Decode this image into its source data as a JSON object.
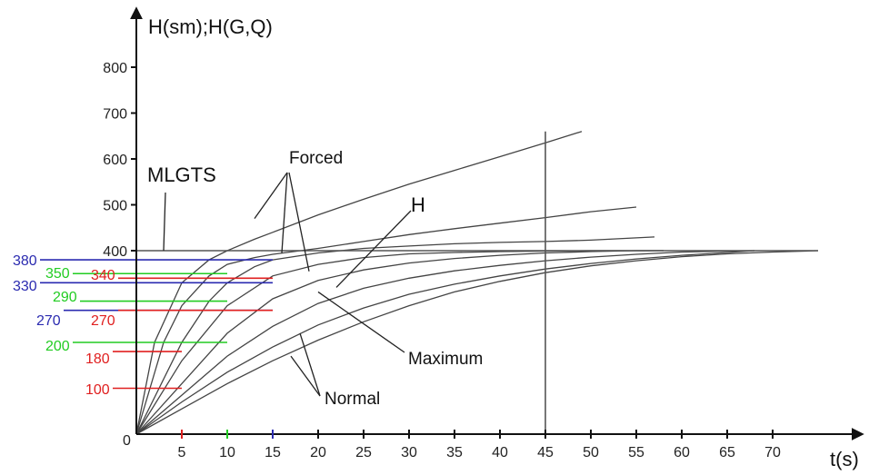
{
  "chart_data": {
    "type": "line",
    "title": "",
    "ylabel": "H(sm);H(G,Q)",
    "xlabel": "t(s)",
    "xlim": [
      0,
      78
    ],
    "ylim": [
      0,
      860
    ],
    "x_ticks": [
      5,
      10,
      15,
      20,
      25,
      30,
      35,
      40,
      45,
      50,
      55,
      60,
      65,
      70
    ],
    "y_ticks": [
      400,
      500,
      600,
      700,
      800
    ],
    "origin_label": "0",
    "grid": false,
    "series": [
      {
        "x": [
          0,
          2,
          5,
          8,
          10,
          13,
          15,
          20,
          25,
          30,
          35,
          40,
          45,
          49
        ],
        "values": [
          0,
          200,
          330,
          380,
          400,
          425,
          440,
          478,
          512,
          545,
          575,
          605,
          635,
          660
        ]
      },
      {
        "x": [
          0,
          3,
          5,
          8,
          10,
          13,
          15,
          20,
          25,
          30,
          35,
          40,
          45,
          50,
          55
        ],
        "values": [
          0,
          200,
          280,
          345,
          370,
          385,
          392,
          405,
          420,
          435,
          448,
          460,
          472,
          485,
          495
        ]
      },
      {
        "x": [
          0,
          5,
          8,
          10,
          13,
          15,
          20,
          25,
          30,
          35,
          40,
          45,
          50,
          55,
          57
        ],
        "values": [
          0,
          200,
          290,
          330,
          365,
          380,
          395,
          405,
          410,
          415,
          418,
          420,
          423,
          428,
          430
        ]
      },
      {
        "x": [
          0,
          5,
          10,
          15,
          20,
          25,
          30,
          35,
          40,
          45,
          50,
          55,
          58
        ],
        "values": [
          0,
          160,
          280,
          345,
          370,
          385,
          393,
          396,
          398,
          399,
          400,
          400,
          400
        ]
      },
      {
        "x": [
          0,
          5,
          10,
          15,
          20,
          25,
          30,
          35,
          40,
          45,
          50,
          55,
          58
        ],
        "values": [
          0,
          110,
          220,
          295,
          335,
          358,
          373,
          383,
          390,
          395,
          398,
          400,
          400
        ]
      },
      {
        "x": [
          0,
          5,
          10,
          15,
          20,
          25,
          30,
          35,
          40,
          45,
          50,
          55,
          60,
          68
        ],
        "values": [
          0,
          85,
          170,
          235,
          285,
          318,
          340,
          356,
          368,
          378,
          386,
          392,
          397,
          400
        ]
      },
      {
        "x": [
          0,
          5,
          10,
          15,
          20,
          25,
          30,
          35,
          40,
          45,
          50,
          55,
          60,
          65,
          68
        ],
        "values": [
          0,
          70,
          135,
          190,
          238,
          275,
          305,
          327,
          345,
          360,
          372,
          382,
          390,
          396,
          400
        ]
      },
      {
        "x": [
          0,
          5,
          10,
          15,
          20,
          25,
          30,
          35,
          40,
          45,
          50,
          55,
          60,
          65,
          70,
          75
        ],
        "values": [
          0,
          55,
          110,
          160,
          205,
          245,
          280,
          310,
          333,
          352,
          367,
          378,
          387,
          393,
          397,
          400
        ]
      }
    ],
    "reference_lines": {
      "horizontal": [
        {
          "y": 400,
          "x_end": 75
        }
      ],
      "vertical": [
        {
          "x": 45,
          "y_end": 660
        }
      ]
    },
    "markers": [
      {
        "label": "380",
        "value": 380,
        "color": "#2b2bb0",
        "x_end": 15
      },
      {
        "label": "350",
        "value": 350,
        "color": "#22cc22",
        "x_end": 10
      },
      {
        "label": "340",
        "value": 340,
        "color": "#e02020",
        "x_end": 15
      },
      {
        "label": "330",
        "value": 330,
        "color": "#2b2bb0",
        "x_end": 15
      },
      {
        "label": "290",
        "value": 290,
        "color": "#22cc22",
        "x_end": 10
      },
      {
        "label": "270",
        "value": 270,
        "color": "#2b2bb0",
        "x_end": 15
      },
      {
        "label": "270",
        "value": 270,
        "color": "#e02020",
        "x_end": 15
      },
      {
        "label": "200",
        "value": 200,
        "color": "#22cc22",
        "x_end": 10
      },
      {
        "label": "180",
        "value": 180,
        "color": "#e02020",
        "x_end": 5
      },
      {
        "label": "100",
        "value": 100,
        "color": "#e02020",
        "x_end": 5
      }
    ],
    "annotations": [
      {
        "text": "MLGTS",
        "points": [
          [
            3,
            400
          ]
        ]
      },
      {
        "text": "Forced",
        "points": [
          [
            13,
            470
          ],
          [
            16,
            395
          ],
          [
            19,
            355
          ]
        ]
      },
      {
        "text": "H",
        "points": [
          [
            22,
            320
          ]
        ]
      },
      {
        "text": "Maximum",
        "points": [
          [
            20,
            310
          ]
        ]
      },
      {
        "text": "Normal",
        "points": [
          [
            18,
            220
          ],
          [
            17,
            170
          ]
        ]
      }
    ],
    "colors": {
      "axis": "#111111",
      "curve": "#444444",
      "ref_line": "#555555"
    }
  }
}
